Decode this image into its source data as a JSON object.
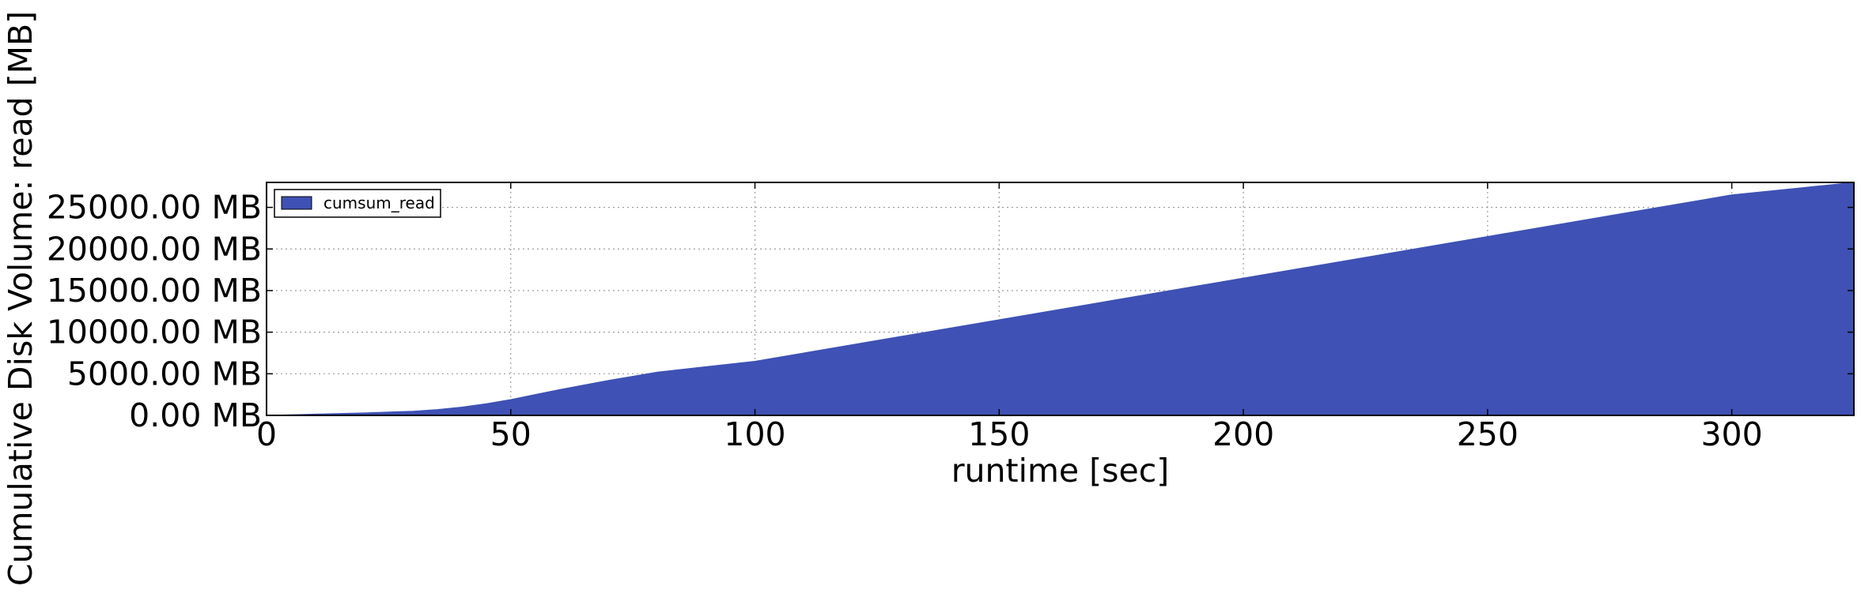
{
  "chart_data": {
    "type": "area",
    "xlabel": "runtime [sec]",
    "ylabel": "Cumulative Disk Volume: read [MB]",
    "xlim": [
      0,
      325
    ],
    "ylim": [
      0,
      28000
    ],
    "x_ticks": [
      0,
      50,
      100,
      150,
      200,
      250,
      300
    ],
    "x_tick_labels": [
      "0",
      "50",
      "100",
      "150",
      "200",
      "250",
      "300"
    ],
    "y_ticks": [
      0,
      5000,
      10000,
      15000,
      20000,
      25000
    ],
    "y_tick_labels": [
      "0.00 MB",
      "5000.00 MB",
      "10000.00 MB",
      "15000.00 MB",
      "20000.00 MB",
      "25000.00 MB"
    ],
    "grid": true,
    "legend": {
      "position": "top-left"
    },
    "colors": {
      "fill": "#3f51b5"
    },
    "series": [
      {
        "name": "cumsum_read",
        "x": [
          0,
          10,
          20,
          30,
          35,
          40,
          45,
          50,
          55,
          60,
          70,
          80,
          100,
          150,
          200,
          250,
          300,
          325
        ],
        "values": [
          0,
          150,
          300,
          500,
          700,
          1000,
          1400,
          1900,
          2500,
          3100,
          4200,
          5200,
          6500,
          11500,
          16500,
          21500,
          26500,
          28000
        ]
      }
    ]
  }
}
